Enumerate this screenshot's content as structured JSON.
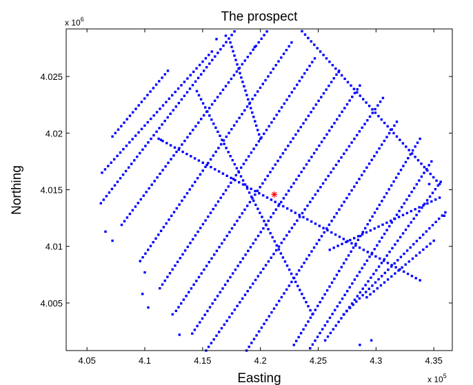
{
  "chart_data": {
    "type": "scatter",
    "title": "The prospect",
    "xlabel": "Easting",
    "ylabel": "Northing",
    "x_multiplier": {
      "base": "x 10",
      "exponent": "5"
    },
    "y_multiplier": {
      "base": "x 10",
      "exponent": "6"
    },
    "xlim": [
      403.2,
      436.6
    ],
    "ylim": [
      4.0008,
      4.0292
    ],
    "x_ticks": [
      4.05,
      4.1,
      4.15,
      4.2,
      4.25,
      4.3,
      4.35
    ],
    "x_tick_labels": [
      "4.05",
      "4.1",
      "4.15",
      "4.2",
      "4.25",
      "4.3",
      "4.35"
    ],
    "y_ticks": [
      4.005,
      4.01,
      4.015,
      4.02,
      4.025
    ],
    "y_tick_labels": [
      "4.005",
      "4.01",
      "4.015",
      "4.02",
      "4.025"
    ],
    "grid": false,
    "box": true,
    "series": [
      {
        "marker": "point",
        "color": "#0000ff",
        "lines": [
          {
            "start": [
              407.2,
              4.0197
            ],
            "end": [
              412.0,
              4.0255
            ]
          },
          {
            "start": [
              406.3,
              4.0165
            ],
            "end": [
              415.8,
              4.0272
            ]
          },
          {
            "start": [
              406.2,
              4.0138
            ],
            "end": [
              418.0,
              4.0293
            ]
          },
          {
            "start": [
              408.0,
              4.0119
            ],
            "end": [
              420.8,
              4.0293
            ]
          },
          {
            "start": [
              409.6,
              4.0087
            ],
            "end": [
              422.7,
              4.028
            ]
          },
          {
            "start": [
              411.3,
              4.0063
            ],
            "end": [
              424.7,
              4.0266
            ]
          },
          {
            "start": [
              412.7,
              4.0043
            ],
            "end": [
              426.8,
              4.0255
            ]
          },
          {
            "start": [
              414.1,
              4.0023
            ],
            "end": [
              428.6,
              4.0242
            ]
          },
          {
            "start": [
              415.3,
              4.0008
            ],
            "end": [
              430.6,
              4.0231
            ]
          },
          {
            "start": [
              418.8,
              4.0008
            ],
            "end": [
              431.8,
              4.021
            ]
          },
          {
            "start": [
              422.9,
              4.0013
            ],
            "end": [
              433.8,
              4.0195
            ]
          },
          {
            "start": [
              424.3,
              4.001
            ],
            "end": [
              434.8,
              4.0175
            ]
          },
          {
            "start": [
              425.6,
              4.0017
            ],
            "end": [
              435.6,
              4.0157
            ]
          },
          {
            "start": [
              427.2,
              4.004
            ],
            "end": [
              436.0,
              4.013
            ]
          },
          {
            "start": [
              429.2,
              4.0055
            ],
            "end": [
              435.0,
              4.0105
            ]
          },
          {
            "start": [
              426.0,
              4.0097
            ],
            "end": [
              435.5,
              4.0143
            ]
          },
          {
            "start": [
              411.2,
              4.0195
            ],
            "end": [
              433.8,
              4.007
            ]
          },
          {
            "start": [
              414.5,
              4.0237
            ],
            "end": [
              424.5,
              4.004
            ]
          },
          {
            "start": [
              417.4,
              4.028
            ],
            "end": [
              420.0,
              4.0195
            ]
          },
          {
            "start": [
              423.6,
              4.029
            ],
            "end": [
              435.5,
              4.0155
            ]
          }
        ],
        "points": [
          {
            "x": 406.6,
            "y": 4.0113
          },
          {
            "x": 407.2,
            "y": 4.0105
          },
          {
            "x": 410.0,
            "y": 4.0077
          },
          {
            "x": 409.8,
            "y": 4.0058
          },
          {
            "x": 410.3,
            "y": 4.0046
          },
          {
            "x": 412.4,
            "y": 4.004
          },
          {
            "x": 413.0,
            "y": 4.0022
          },
          {
            "x": 416.2,
            "y": 4.0283
          },
          {
            "x": 417.0,
            "y": 4.0286
          },
          {
            "x": 419.5,
            "y": 4.0276
          },
          {
            "x": 411.4,
            "y": 4.0194
          },
          {
            "x": 428.6,
            "y": 4.0013
          },
          {
            "x": 429.6,
            "y": 4.0017
          },
          {
            "x": 434.6,
            "y": 4.0155
          },
          {
            "x": 435.9,
            "y": 4.0127
          }
        ]
      },
      {
        "marker": "asterisk",
        "color": "#ff0000",
        "points": [
          {
            "x": 421.2,
            "y": 4.01458
          }
        ]
      }
    ]
  }
}
